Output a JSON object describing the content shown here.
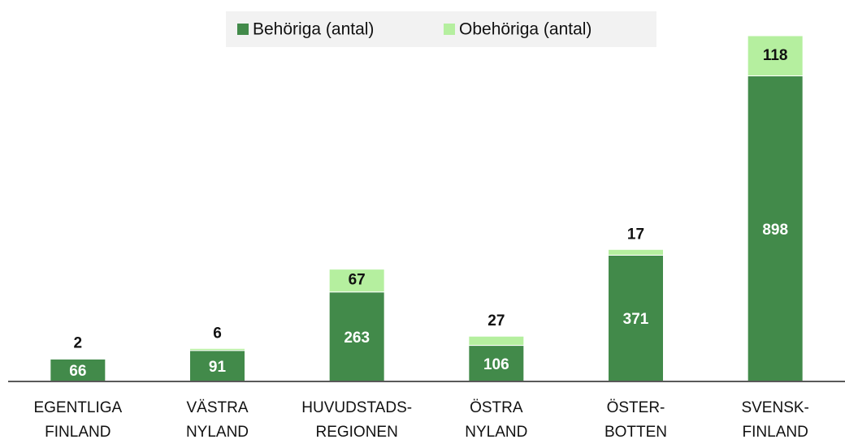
{
  "chart_data": {
    "type": "stacked_bar",
    "categories": [
      [
        "EGENTLIGA",
        "FINLAND"
      ],
      [
        "VÄSTRA",
        "NYLAND"
      ],
      [
        "HUVUDSTADS-",
        "REGIONEN"
      ],
      [
        "ÖSTRA",
        "NYLAND"
      ],
      [
        "ÖSTER-",
        "BOTTEN"
      ],
      [
        "SVENSK-",
        "FINLAND"
      ]
    ],
    "series": [
      {
        "name": "Behöriga (antal)",
        "color": "#428a4a",
        "values": [
          66,
          91,
          263,
          106,
          371,
          898
        ]
      },
      {
        "name": "Obehöriga (antal)",
        "color": "#b5ef9f",
        "values": [
          2,
          6,
          67,
          27,
          17,
          118
        ]
      }
    ],
    "legend": "top"
  }
}
